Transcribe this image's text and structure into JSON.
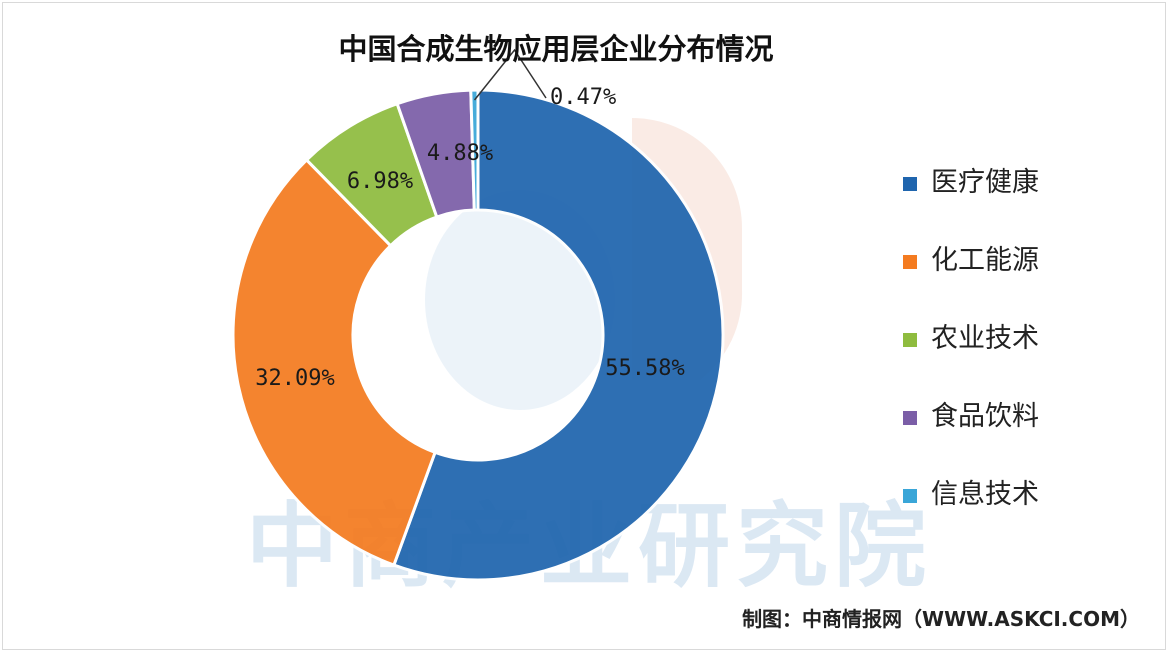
{
  "chart_data": {
    "type": "donut",
    "title": "中国合成生物应用层企业分布情况",
    "categories": [
      "医疗健康",
      "化工能源",
      "农业技术",
      "食品饮料",
      "信息技术"
    ],
    "values": [
      55.58,
      32.09,
      6.98,
      4.88,
      0.47
    ],
    "data_labels": [
      "55.58%",
      "32.09%",
      "6.98%",
      "4.88%",
      "0.47%"
    ],
    "colors": [
      "#1f65ae",
      "#f47b20",
      "#8fbc3f",
      "#7b5ea7",
      "#3aa6d8"
    ],
    "legend_position": "right"
  },
  "legend": [
    {
      "label": "医疗健康",
      "color": "#1f65ae"
    },
    {
      "label": "化工能源",
      "color": "#f47b20"
    },
    {
      "label": "农业技术",
      "color": "#8fbc3f"
    },
    {
      "label": "食品饮料",
      "color": "#7b5ea7"
    },
    {
      "label": "信息技术",
      "color": "#3aa6d8"
    }
  ],
  "source": "制图：中商情报网（WWW.ASKCI.COM）",
  "watermark": "中商产业研究院"
}
